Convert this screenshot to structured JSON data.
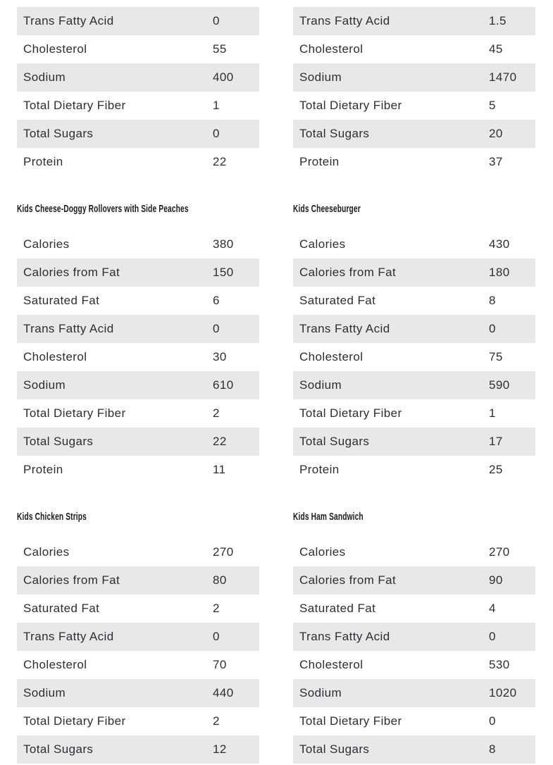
{
  "colors": {
    "row_shade": "#e8e8e9",
    "text": "#2d2e30",
    "title": "#1b1b1b",
    "background": "#ffffff"
  },
  "sections": [
    {
      "left": {
        "title": "",
        "first_row_shaded": true,
        "rows": [
          {
            "label": "Trans Fatty Acid",
            "value": "0"
          },
          {
            "label": "Cholesterol",
            "value": "55"
          },
          {
            "label": "Sodium",
            "value": "400"
          },
          {
            "label": "Total Dietary Fiber",
            "value": "1"
          },
          {
            "label": "Total Sugars",
            "value": "0"
          },
          {
            "label": "Protein",
            "value": "22"
          }
        ]
      },
      "right": {
        "title": "",
        "first_row_shaded": true,
        "rows": [
          {
            "label": "Trans Fatty Acid",
            "value": "1.5"
          },
          {
            "label": "Cholesterol",
            "value": "45"
          },
          {
            "label": "Sodium",
            "value": "1470"
          },
          {
            "label": "Total Dietary Fiber",
            "value": "5"
          },
          {
            "label": "Total Sugars",
            "value": "20"
          },
          {
            "label": "Protein",
            "value": "37"
          }
        ]
      }
    },
    {
      "left": {
        "title": "Kids Cheese-Doggy Rollovers with Side Peaches",
        "first_row_shaded": false,
        "rows": [
          {
            "label": "Calories",
            "value": "380"
          },
          {
            "label": "Calories from Fat",
            "value": "150"
          },
          {
            "label": "Saturated Fat",
            "value": "6"
          },
          {
            "label": "Trans Fatty Acid",
            "value": "0"
          },
          {
            "label": "Cholesterol",
            "value": "30"
          },
          {
            "label": "Sodium",
            "value": "610"
          },
          {
            "label": "Total Dietary Fiber",
            "value": "2"
          },
          {
            "label": "Total Sugars",
            "value": "22"
          },
          {
            "label": "Protein",
            "value": "11"
          }
        ]
      },
      "right": {
        "title": "Kids Cheeseburger",
        "first_row_shaded": false,
        "rows": [
          {
            "label": "Calories",
            "value": "430"
          },
          {
            "label": "Calories from Fat",
            "value": "180"
          },
          {
            "label": "Saturated Fat",
            "value": "8"
          },
          {
            "label": "Trans Fatty Acid",
            "value": "0"
          },
          {
            "label": "Cholesterol",
            "value": "75"
          },
          {
            "label": "Sodium",
            "value": "590"
          },
          {
            "label": "Total Dietary Fiber",
            "value": "1"
          },
          {
            "label": "Total Sugars",
            "value": "17"
          },
          {
            "label": "Protein",
            "value": "25"
          }
        ]
      }
    },
    {
      "left": {
        "title": "Kids Chicken Strips",
        "first_row_shaded": false,
        "rows": [
          {
            "label": "Calories",
            "value": "270"
          },
          {
            "label": "Calories from Fat",
            "value": "80"
          },
          {
            "label": "Saturated Fat",
            "value": "2"
          },
          {
            "label": "Trans Fatty Acid",
            "value": "0"
          },
          {
            "label": "Cholesterol",
            "value": "70"
          },
          {
            "label": "Sodium",
            "value": "440"
          },
          {
            "label": "Total Dietary Fiber",
            "value": "2"
          },
          {
            "label": "Total Sugars",
            "value": "12"
          }
        ]
      },
      "right": {
        "title": "Kids Ham Sandwich",
        "first_row_shaded": false,
        "rows": [
          {
            "label": "Calories",
            "value": "270"
          },
          {
            "label": "Calories from Fat",
            "value": "90"
          },
          {
            "label": "Saturated Fat",
            "value": "4"
          },
          {
            "label": "Trans Fatty Acid",
            "value": "0"
          },
          {
            "label": "Cholesterol",
            "value": "530"
          },
          {
            "label": "Sodium",
            "value": "1020"
          },
          {
            "label": "Total Dietary Fiber",
            "value": "0"
          },
          {
            "label": "Total Sugars",
            "value": "8"
          }
        ]
      }
    }
  ]
}
